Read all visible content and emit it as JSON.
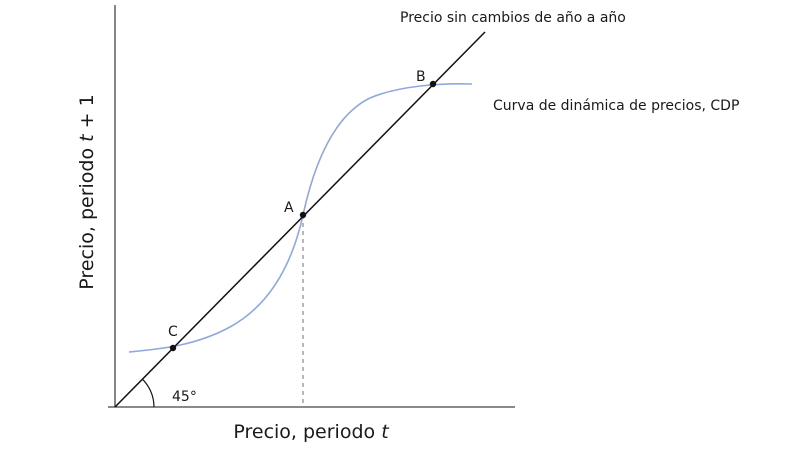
{
  "axes": {
    "x_title_prefix": "Precio, periodo ",
    "x_title_var": "t",
    "y_title_prefix": "Precio, periodo ",
    "y_title_var": "t",
    "y_title_suffix": " + 1"
  },
  "lines": {
    "diagonal_label": "Precio sin cambios de año a año",
    "curve_label": "Curva de dinámica de precios, CDP",
    "angle_label": "45°"
  },
  "points": {
    "a": "A",
    "b": "B",
    "c": "C"
  },
  "colors": {
    "axis": "#444444",
    "diagonal": "#111111",
    "curve": "#8fa8dd",
    "dashed": "#888888",
    "point": "#111111"
  }
}
